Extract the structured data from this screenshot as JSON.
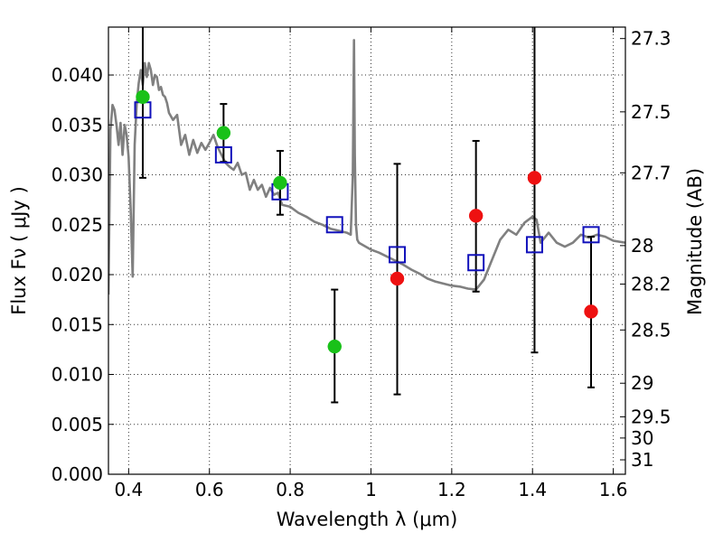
{
  "chart_data": {
    "type": "scatter",
    "xlabel": "Wavelength  λ (μm)",
    "ylabel": "Flux  Fν  ( μJy )",
    "ylabel2": "Magnitude (AB)",
    "xlim": [
      0.35,
      1.63
    ],
    "ylim": [
      0.0,
      0.0448
    ],
    "grid": true,
    "x_ticks": [
      0.4,
      0.6,
      0.8,
      1.0,
      1.2,
      1.4,
      1.6
    ],
    "x_tick_labels": [
      "0.4",
      "0.6",
      "0.8",
      "1",
      "1.2",
      "1.4",
      "1.6"
    ],
    "y_ticks": [
      0.0,
      0.005,
      0.01,
      0.015,
      0.02,
      0.025,
      0.03,
      0.035,
      0.04
    ],
    "y_tick_labels": [
      "0.000",
      "0.005",
      "0.010",
      "0.015",
      "0.020",
      "0.025",
      "0.030",
      "0.035",
      "0.040"
    ],
    "mag_ticks": [
      27.3,
      27.5,
      27.7,
      28,
      28.2,
      28.5,
      29,
      29.5,
      30,
      31
    ],
    "mag_tick_labels": [
      "27.3",
      "27.5",
      "27.7",
      "28",
      "28.2",
      "28.5",
      "29",
      "29.5",
      "30",
      "31"
    ],
    "colors": {
      "model": "#808080",
      "green": "#19c119",
      "red": "#ee1111",
      "box": "#1111bb",
      "errorbar": "#000000"
    },
    "model_spectrum": {
      "x": [
        0.35,
        0.355,
        0.36,
        0.365,
        0.37,
        0.375,
        0.38,
        0.385,
        0.39,
        0.395,
        0.4,
        0.405,
        0.41,
        0.415,
        0.42,
        0.425,
        0.43,
        0.435,
        0.44,
        0.445,
        0.45,
        0.455,
        0.46,
        0.465,
        0.47,
        0.475,
        0.48,
        0.485,
        0.49,
        0.495,
        0.5,
        0.51,
        0.52,
        0.53,
        0.54,
        0.55,
        0.56,
        0.57,
        0.58,
        0.59,
        0.6,
        0.61,
        0.62,
        0.63,
        0.64,
        0.65,
        0.66,
        0.67,
        0.68,
        0.69,
        0.7,
        0.71,
        0.72,
        0.73,
        0.74,
        0.75,
        0.76,
        0.77,
        0.78,
        0.8,
        0.82,
        0.84,
        0.86,
        0.88,
        0.9,
        0.92,
        0.94,
        0.95,
        0.955,
        0.958,
        0.96,
        0.963,
        0.966,
        0.97,
        1.0,
        1.02,
        1.04,
        1.06,
        1.08,
        1.1,
        1.12,
        1.14,
        1.16,
        1.18,
        1.2,
        1.22,
        1.24,
        1.26,
        1.28,
        1.3,
        1.32,
        1.34,
        1.36,
        1.38,
        1.4,
        1.41,
        1.42,
        1.44,
        1.46,
        1.48,
        1.5,
        1.52,
        1.54,
        1.56,
        1.58,
        1.6,
        1.63
      ],
      "y": [
        0.018,
        0.0345,
        0.037,
        0.0365,
        0.035,
        0.033,
        0.0352,
        0.032,
        0.035,
        0.034,
        0.0318,
        0.0265,
        0.0198,
        0.033,
        0.0372,
        0.0392,
        0.0405,
        0.039,
        0.0412,
        0.0398,
        0.0412,
        0.0405,
        0.039,
        0.04,
        0.0398,
        0.0385,
        0.0388,
        0.038,
        0.0378,
        0.0372,
        0.0362,
        0.0355,
        0.036,
        0.033,
        0.034,
        0.032,
        0.0335,
        0.0322,
        0.0332,
        0.0325,
        0.0332,
        0.034,
        0.0328,
        0.032,
        0.0312,
        0.0308,
        0.0305,
        0.0312,
        0.03,
        0.0302,
        0.0285,
        0.0295,
        0.0285,
        0.029,
        0.0278,
        0.0287,
        0.028,
        0.0282,
        0.027,
        0.0268,
        0.0262,
        0.0258,
        0.0253,
        0.025,
        0.0246,
        0.0244,
        0.0242,
        0.024,
        0.03,
        0.0435,
        0.032,
        0.025,
        0.0235,
        0.0232,
        0.0225,
        0.0222,
        0.0218,
        0.0214,
        0.021,
        0.0205,
        0.0201,
        0.0196,
        0.0193,
        0.0191,
        0.0189,
        0.0188,
        0.0186,
        0.0185,
        0.0195,
        0.0215,
        0.0235,
        0.0245,
        0.024,
        0.0252,
        0.0258,
        0.0255,
        0.0232,
        0.0242,
        0.0232,
        0.0228,
        0.0232,
        0.024,
        0.0237,
        0.024,
        0.0238,
        0.0234,
        0.0232
      ]
    },
    "photometry_boxes": {
      "x": [
        0.435,
        0.635,
        0.775,
        0.91,
        1.065,
        1.26,
        1.405,
        1.545
      ],
      "y": [
        0.0365,
        0.032,
        0.0283,
        0.025,
        0.022,
        0.0212,
        0.023,
        0.024
      ]
    },
    "observed_points": [
      {
        "x": 0.435,
        "y": 0.0378,
        "err_low": 0.0297,
        "err_high": 0.0448,
        "color": "green"
      },
      {
        "x": 0.635,
        "y": 0.0342,
        "err_low": 0.0313,
        "err_high": 0.0371,
        "color": "green"
      },
      {
        "x": 0.775,
        "y": 0.0292,
        "err_low": 0.026,
        "err_high": 0.0324,
        "color": "green"
      },
      {
        "x": 0.91,
        "y": 0.0128,
        "err_low": 0.0072,
        "err_high": 0.0185,
        "color": "green"
      },
      {
        "x": 1.065,
        "y": 0.0196,
        "err_low": 0.008,
        "err_high": 0.0311,
        "color": "red"
      },
      {
        "x": 1.26,
        "y": 0.0259,
        "err_low": 0.0183,
        "err_high": 0.0334,
        "color": "red"
      },
      {
        "x": 1.405,
        "y": 0.0297,
        "err_low": 0.0122,
        "err_high": 0.0448,
        "color": "red"
      },
      {
        "x": 1.545,
        "y": 0.0163,
        "err_low": 0.0087,
        "err_high": 0.0238,
        "color": "red"
      }
    ]
  }
}
